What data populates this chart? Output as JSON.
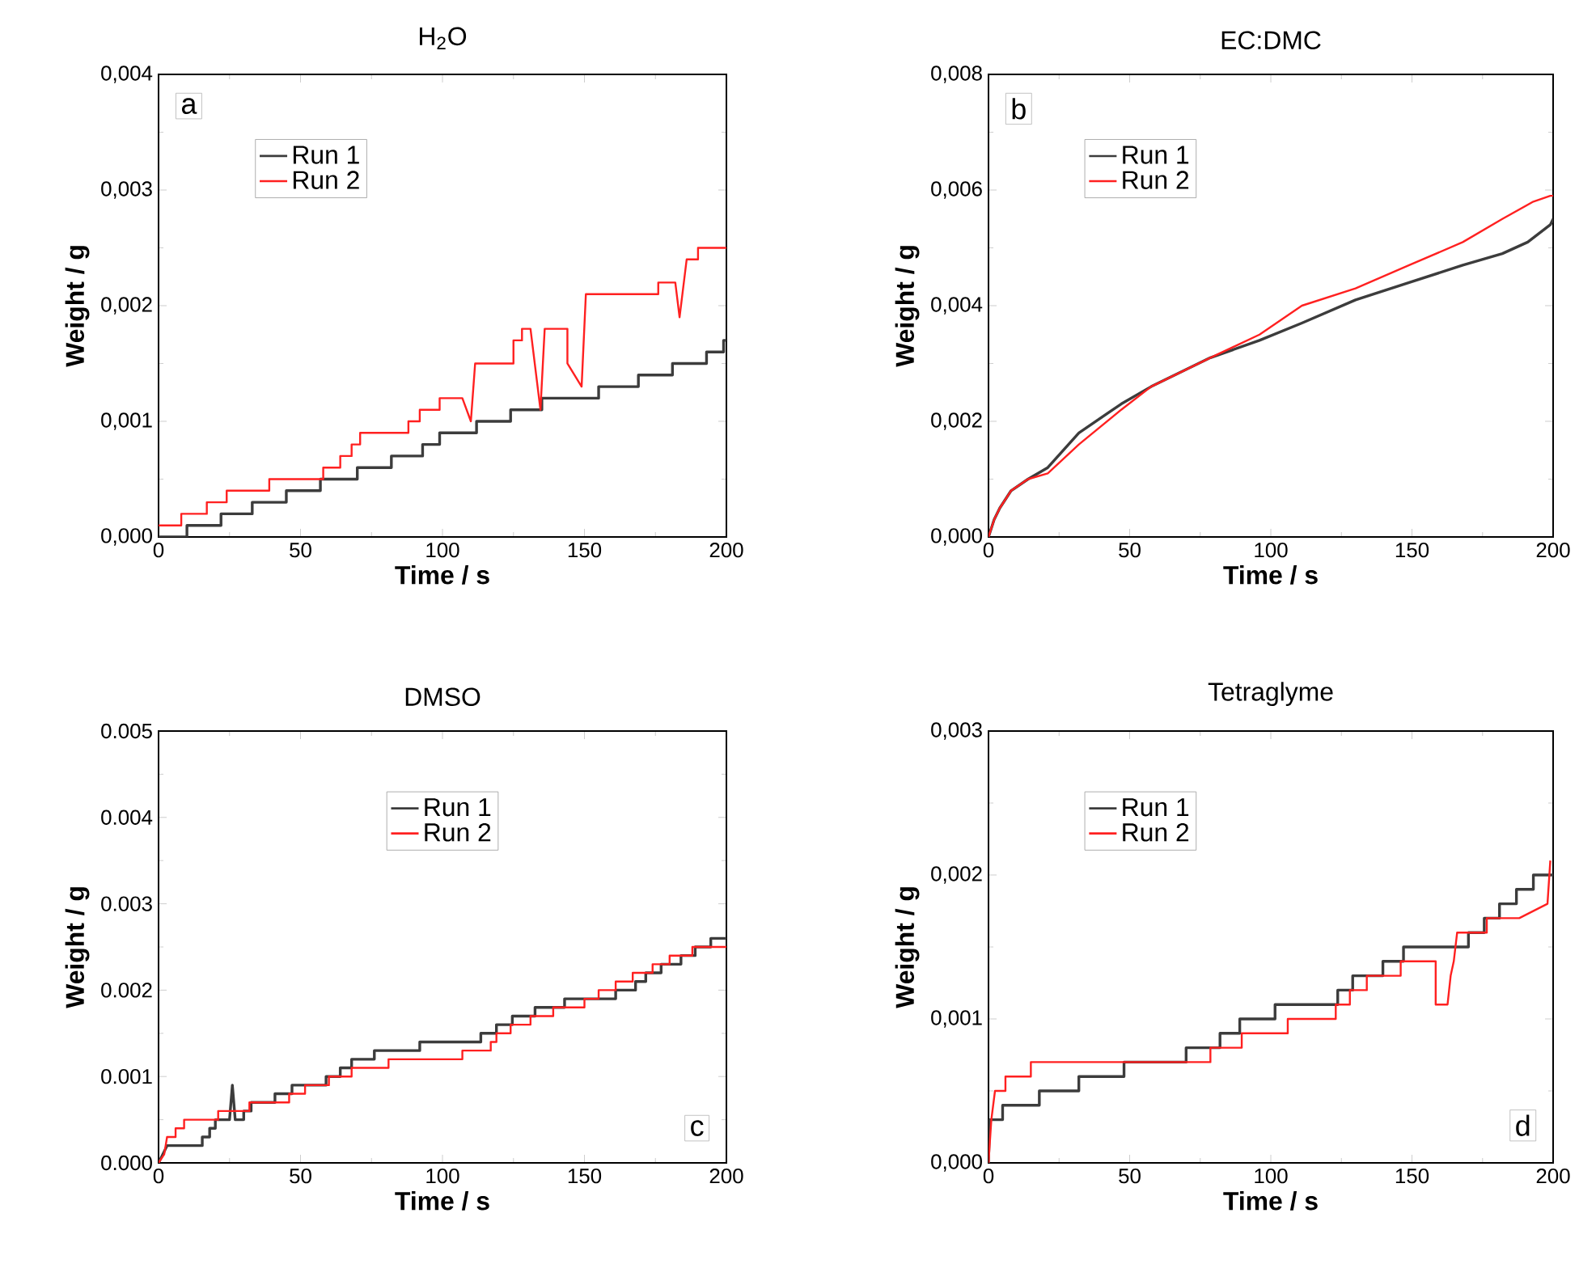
{
  "chart_data": [
    {
      "type": "line",
      "title": "H$_{2}$O",
      "xlabel": "Time / s",
      "ylabel": "Weight / g",
      "legend": "top left",
      "annotations": [
        "a"
      ],
      "xlim": [
        0,
        200
      ],
      "ylim": [
        0,
        0.004
      ],
      "xticks": [
        0,
        50,
        100,
        150,
        200
      ],
      "yticks": [
        {
          "value": 0,
          "label": "0,000"
        },
        {
          "value": 0.001,
          "label": "0,001"
        },
        {
          "value": 0.002,
          "label": "0,002"
        },
        {
          "value": 0.003,
          "label": "0,003"
        },
        {
          "value": 0.004,
          "label": "0,004"
        }
      ],
      "series": [
        {
          "name": "Run 1",
          "color": "#3c3c3c",
          "x": [
            0,
            10,
            10,
            22,
            22,
            33,
            33,
            45,
            45,
            57,
            57,
            70,
            70,
            82,
            82,
            93,
            93,
            99,
            99,
            112,
            112,
            124,
            124,
            135,
            135,
            155,
            155,
            169,
            169,
            181,
            181,
            193,
            193,
            199,
            199,
            200
          ],
          "values": [
            0,
            0,
            0.0001,
            0.0001,
            0.0002,
            0.0002,
            0.0003,
            0.0003,
            0.0004,
            0.0004,
            0.0005,
            0.0005,
            0.0006,
            0.0006,
            0.0007,
            0.0007,
            0.0008,
            0.0008,
            0.0009,
            0.0009,
            0.001,
            0.001,
            0.0011,
            0.0011,
            0.0012,
            0.0012,
            0.0013,
            0.0013,
            0.0014,
            0.0014,
            0.0015,
            0.0015,
            0.0016,
            0.0016,
            0.0017,
            0.0017
          ]
        },
        {
          "name": "Run 2",
          "color": "#ff2020",
          "x": [
            0,
            8,
            8,
            17,
            17,
            24,
            24,
            39,
            39,
            58,
            58,
            64,
            64,
            68,
            68,
            71,
            71,
            88,
            88,
            92,
            92,
            99,
            99,
            107,
            110,
            111.5,
            125,
            125,
            128,
            128,
            131,
            134.5,
            136,
            144,
            144,
            149,
            150.5,
            176,
            176,
            182,
            183.5,
            186,
            190,
            190,
            200
          ],
          "values": [
            0.0001,
            0.0001,
            0.0002,
            0.0002,
            0.0003,
            0.0003,
            0.0004,
            0.0004,
            0.0005,
            0.0005,
            0.0006,
            0.0006,
            0.0007,
            0.0007,
            0.0008,
            0.0008,
            0.0009,
            0.0009,
            0.001,
            0.001,
            0.0011,
            0.0011,
            0.0012,
            0.0012,
            0.001,
            0.0015,
            0.0015,
            0.0017,
            0.0017,
            0.0018,
            0.0018,
            0.0011,
            0.0018,
            0.0018,
            0.0015,
            0.0013,
            0.0021,
            0.0021,
            0.0022,
            0.0022,
            0.0019,
            0.0024,
            0.0024,
            0.0025,
            0.0025
          ]
        }
      ]
    },
    {
      "type": "line",
      "title": "EC:DMC",
      "xlabel": "Time / s",
      "ylabel": "Weight / g",
      "legend": "top left",
      "annotations": [
        "b"
      ],
      "xlim": [
        0,
        200
      ],
      "ylim": [
        0,
        0.008
      ],
      "xticks": [
        0,
        50,
        100,
        150,
        200
      ],
      "yticks": [
        {
          "value": 0,
          "label": "0,000"
        },
        {
          "value": 0.002,
          "label": "0,002"
        },
        {
          "value": 0.004,
          "label": "0,004"
        },
        {
          "value": 0.006,
          "label": "0,006"
        },
        {
          "value": 0.008,
          "label": "0,008"
        }
      ],
      "series": [
        {
          "name": "Run 1",
          "color": "#3c3c3c",
          "x": [
            0,
            2,
            4,
            8,
            14,
            21,
            32,
            47,
            57.6,
            78.6,
            96,
            111,
            130,
            149,
            168,
            182,
            191,
            199,
            200
          ],
          "values": [
            0,
            0.0003,
            0.0005,
            0.0008,
            0.001,
            0.0012,
            0.0018,
            0.0023,
            0.0026,
            0.0031,
            0.0034,
            0.0037,
            0.0041,
            0.0044,
            0.0047,
            0.0049,
            0.0051,
            0.0054,
            0.0055
          ]
        },
        {
          "name": "Run 2",
          "color": "#ff2020",
          "x": [
            0,
            2,
            4,
            8,
            14,
            21,
            32,
            47,
            57.6,
            78.6,
            96,
            111,
            130,
            149,
            168,
            182,
            193,
            199,
            200
          ],
          "values": [
            0,
            0.0003,
            0.0005,
            0.0008,
            0.001,
            0.0011,
            0.0016,
            0.0022,
            0.0026,
            0.0031,
            0.0035,
            0.004,
            0.0043,
            0.0047,
            0.0051,
            0.0055,
            0.0058,
            0.0059,
            0.0059
          ]
        }
      ]
    },
    {
      "type": "line",
      "title": "DMSO",
      "xlabel": "Time / s",
      "ylabel": "Weight / g",
      "legend": "top",
      "annotations": [
        "c"
      ],
      "xlim": [
        0,
        200
      ],
      "ylim": [
        0,
        0.005
      ],
      "xticks": [
        0,
        50,
        100,
        150,
        200
      ],
      "yticks": [
        {
          "value": 0,
          "label": "0.000"
        },
        0.001,
        0.002,
        0.003,
        0.004,
        0.005
      ],
      "series": [
        {
          "name": "Run 1",
          "color": "#3c3c3c",
          "x": [
            0,
            3,
            15.4,
            15.4,
            18,
            18,
            20,
            20,
            25,
            26,
            27,
            30,
            30,
            32.6,
            32.6,
            41,
            41,
            47,
            47,
            59,
            59,
            64,
            64,
            68,
            68,
            76,
            76,
            92,
            92,
            113.5,
            113.5,
            119,
            119,
            124.6,
            124.6,
            132.6,
            132.6,
            143,
            143,
            161,
            161,
            168,
            168,
            171.6,
            171.6,
            177,
            177,
            184,
            184,
            189,
            189,
            194.5,
            194.5,
            200
          ],
          "values": [
            0,
            0.0002,
            0.0002,
            0.0003,
            0.0003,
            0.0004,
            0.0004,
            0.0005,
            0.0005,
            0.0009,
            0.0005,
            0.0005,
            0.0006,
            0.0006,
            0.0007,
            0.0007,
            0.0008,
            0.0008,
            0.0009,
            0.0009,
            0.001,
            0.001,
            0.0011,
            0.0011,
            0.0012,
            0.0012,
            0.0013,
            0.0013,
            0.0014,
            0.0014,
            0.0015,
            0.0015,
            0.0016,
            0.0016,
            0.0017,
            0.0017,
            0.0018,
            0.0018,
            0.0019,
            0.0019,
            0.002,
            0.002,
            0.0021,
            0.0021,
            0.0022,
            0.0022,
            0.0023,
            0.0023,
            0.0024,
            0.0024,
            0.0025,
            0.0025,
            0.0026,
            0.0026
          ]
        },
        {
          "name": "Run 2",
          "color": "#ff2020",
          "x": [
            0,
            2,
            3,
            6,
            6,
            9,
            9,
            21,
            21,
            32,
            32,
            46,
            46,
            51.6,
            51.6,
            60,
            60,
            68,
            68,
            81,
            81,
            107,
            107,
            117,
            117,
            119,
            119,
            124,
            124,
            131,
            131,
            139,
            139,
            150,
            150,
            155,
            155,
            161,
            161,
            167,
            167,
            174,
            174,
            180,
            180,
            188,
            188,
            200
          ],
          "values": [
            0,
            0.0001,
            0.0003,
            0.0003,
            0.0004,
            0.0004,
            0.0005,
            0.0005,
            0.0006,
            0.0006,
            0.0007,
            0.0007,
            0.0008,
            0.0008,
            0.0009,
            0.0009,
            0.001,
            0.001,
            0.0011,
            0.0011,
            0.0012,
            0.0012,
            0.0013,
            0.0013,
            0.0014,
            0.0014,
            0.0015,
            0.0015,
            0.0016,
            0.0016,
            0.0017,
            0.0017,
            0.0018,
            0.0018,
            0.0019,
            0.0019,
            0.002,
            0.002,
            0.0021,
            0.0021,
            0.0022,
            0.0022,
            0.0023,
            0.0023,
            0.0024,
            0.0024,
            0.0025,
            0.0025
          ]
        }
      ]
    },
    {
      "type": "line",
      "title": "Tetraglyme",
      "xlabel": "Time / s",
      "ylabel": "Weight / g",
      "legend": "top left",
      "annotations": [
        "d"
      ],
      "xlim": [
        0,
        200
      ],
      "ylim": [
        0,
        0.003
      ],
      "xticks": [
        0,
        50,
        100,
        150,
        200
      ],
      "yticks": [
        {
          "value": 0,
          "label": "0,000"
        },
        {
          "value": 0.001,
          "label": "0,001"
        },
        {
          "value": 0.002,
          "label": "0,002"
        },
        {
          "value": 0.003,
          "label": "0,003"
        }
      ],
      "series": [
        {
          "name": "Run 1",
          "color": "#3c3c3c",
          "x": [
            0,
            0.4,
            5,
            5,
            18,
            18,
            32,
            32,
            48,
            48,
            70,
            70,
            82,
            82,
            89,
            89,
            101.5,
            101.5,
            123.7,
            123.7,
            129,
            129,
            139.7,
            139.7,
            147,
            147,
            170,
            170,
            175.6,
            175.6,
            181,
            181,
            187,
            187,
            193,
            193,
            200
          ],
          "values": [
            0,
            0.0003,
            0.0003,
            0.0004,
            0.0004,
            0.0005,
            0.0005,
            0.0006,
            0.0006,
            0.0007,
            0.0007,
            0.0008,
            0.0008,
            0.0009,
            0.0009,
            0.001,
            0.001,
            0.0011,
            0.0011,
            0.0012,
            0.0012,
            0.0013,
            0.0013,
            0.0014,
            0.0014,
            0.0015,
            0.0015,
            0.0016,
            0.0016,
            0.0017,
            0.0017,
            0.0018,
            0.0018,
            0.0019,
            0.0019,
            0.002,
            0.002
          ]
        },
        {
          "name": "Run 2",
          "color": "#ff2020",
          "x": [
            0,
            1,
            2.3,
            6,
            6,
            15,
            15,
            78.6,
            78.6,
            89.7,
            89.7,
            106,
            106,
            123,
            123,
            128,
            128,
            134,
            134,
            146,
            146,
            158.4,
            158.4,
            162.6,
            163.7,
            164.8,
            166,
            176.5,
            176.5,
            188,
            198,
            199
          ],
          "values": [
            0,
            0.0003,
            0.0005,
            0.0005,
            0.0006,
            0.0006,
            0.0007,
            0.0007,
            0.0008,
            0.0008,
            0.0009,
            0.0009,
            0.001,
            0.001,
            0.0011,
            0.0011,
            0.0012,
            0.0012,
            0.0013,
            0.0013,
            0.0014,
            0.0014,
            0.0011,
            0.0011,
            0.0013,
            0.0014,
            0.0016,
            0.0016,
            0.0017,
            0.0017,
            0.0018,
            0.0021
          ]
        }
      ]
    }
  ]
}
